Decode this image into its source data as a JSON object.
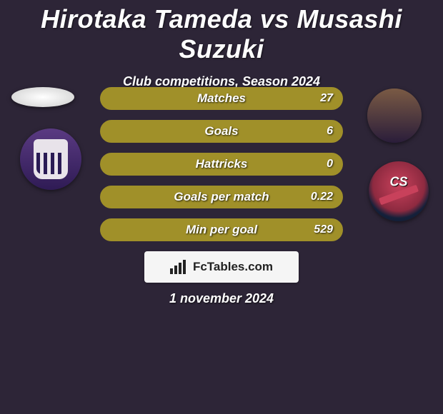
{
  "header": {
    "title": "Hirotaka Tameda vs Musashi Suzuki",
    "subtitle": "Club competitions, Season 2024"
  },
  "colors": {
    "background": "#2d2537",
    "bar_fill": "#a09029",
    "bar_border": "#a09029",
    "text": "#ffffff",
    "brand_bg": "#f5f5f5",
    "brand_text": "#222222"
  },
  "stats": [
    {
      "label": "Matches",
      "value": "27",
      "fill_pct": 100
    },
    {
      "label": "Goals",
      "value": "6",
      "fill_pct": 100
    },
    {
      "label": "Hattricks",
      "value": "0",
      "fill_pct": 100
    },
    {
      "label": "Goals per match",
      "value": "0.22",
      "fill_pct": 100
    },
    {
      "label": "Min per goal",
      "value": "529",
      "fill_pct": 100
    }
  ],
  "brand": {
    "text": "FcTables.com",
    "icon": "bar-chart-icon"
  },
  "date": "1 november 2024",
  "players": {
    "left": {
      "photo_shape": "ellipse-placeholder",
      "club": "cerezo-osaka-crest"
    },
    "right": {
      "photo_shape": "player-photo",
      "club": "consadole-sapporo-crest"
    }
  }
}
